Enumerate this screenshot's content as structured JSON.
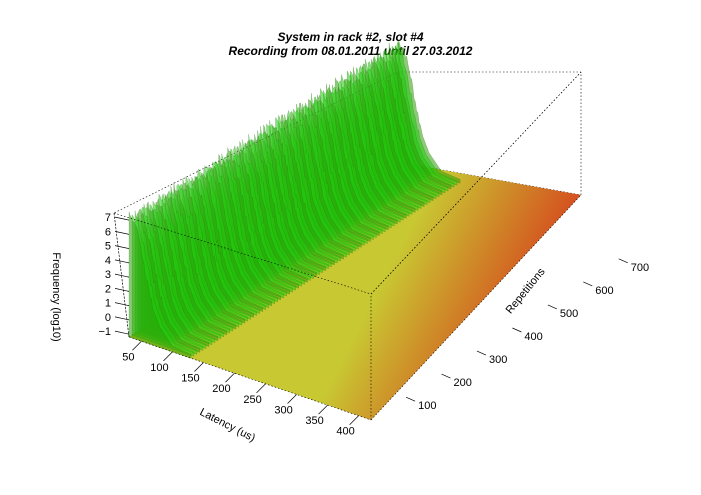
{
  "chart_data": {
    "type": "3d-surface",
    "title": "System in rack #2, slot #4",
    "subtitle": "Recording from 08.01.2011 until 27.03.2012",
    "xlabel": "Latency (us)",
    "ylabel": "Repetitions",
    "zlabel": "Frequency (log10)",
    "x_ticks": [
      50,
      100,
      150,
      200,
      250,
      300,
      350,
      400
    ],
    "y_ticks": [
      100,
      200,
      300,
      400,
      500,
      600,
      700
    ],
    "z_ticks": [
      -1,
      0,
      1,
      2,
      3,
      4,
      5,
      6,
      7
    ],
    "xlim": [
      30,
      420
    ],
    "ylim": [
      1,
      760
    ],
    "zlim": [
      -1.2,
      7.5
    ],
    "colors": {
      "low": "#d8341b",
      "mid": "#c8c832",
      "high": "#22c80f",
      "peak": "#2e9e0a",
      "axis": "#000000",
      "box": "#000000"
    },
    "surface_profile": {
      "description_values": [
        {
          "latency": 30,
          "frequency": 7.3
        },
        {
          "latency": 40,
          "frequency": 6.9
        },
        {
          "latency": 50,
          "frequency": 5.2
        },
        {
          "latency": 60,
          "frequency": 3.0
        },
        {
          "latency": 70,
          "frequency": 1.2
        },
        {
          "latency": 80,
          "frequency": 0.2
        },
        {
          "latency": 100,
          "frequency": -0.8
        },
        {
          "latency": 150,
          "frequency": -1.0
        },
        {
          "latency": 420,
          "frequency": -1.0
        }
      ]
    }
  }
}
